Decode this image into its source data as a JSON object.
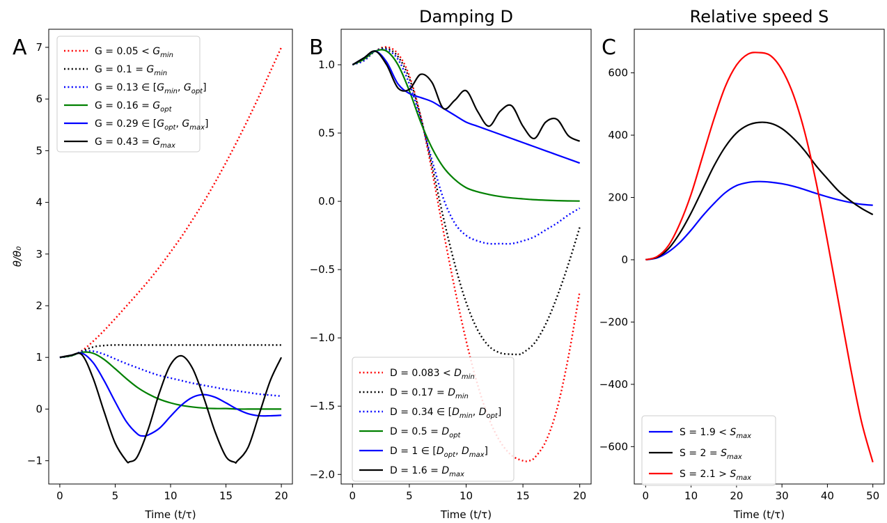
{
  "chart_data": [
    {
      "type": "line",
      "panel_letter": "A",
      "title": "",
      "xlabel": "Time (t/τ)",
      "ylabel": "θ/θ₀",
      "xlim": [
        -1,
        21
      ],
      "ylim": [
        -1.45,
        7.35
      ],
      "xticks": [
        0,
        5,
        10,
        15,
        20
      ],
      "xtick_labels": [
        "0",
        "5",
        "10",
        "15",
        "20"
      ],
      "yticks": [
        -1,
        0,
        1,
        2,
        3,
        4,
        5,
        6,
        7
      ],
      "ytick_labels": [
        "−1",
        "0",
        "1",
        "2",
        "3",
        "4",
        "5",
        "6",
        "7"
      ],
      "legend_position": "upper-left",
      "grid": false,
      "series": [
        {
          "name": "G = 0.05 < G_min",
          "color": "#ff0000",
          "dash": "dotted",
          "x": [
            0,
            1,
            2,
            3,
            4,
            5,
            6,
            7,
            8,
            9,
            10,
            11,
            12,
            13,
            14,
            15,
            16,
            17,
            18,
            19,
            20
          ],
          "y": [
            1.0,
            1.03,
            1.13,
            1.31,
            1.52,
            1.75,
            1.99,
            2.23,
            2.48,
            2.75,
            3.04,
            3.34,
            3.67,
            4.01,
            4.38,
            4.77,
            5.18,
            5.61,
            6.06,
            6.53,
            7.0
          ]
        },
        {
          "name": "G = 0.1 = G_min",
          "color": "#000000",
          "dash": "dotted",
          "x": [
            0,
            1,
            2,
            3,
            4,
            5,
            6,
            7,
            8,
            9,
            10,
            11,
            12,
            13,
            14,
            15,
            16,
            17,
            18,
            19,
            20
          ],
          "y": [
            1.0,
            1.03,
            1.12,
            1.2,
            1.23,
            1.24,
            1.24,
            1.24,
            1.24,
            1.24,
            1.24,
            1.24,
            1.24,
            1.24,
            1.24,
            1.24,
            1.24,
            1.24,
            1.24,
            1.24,
            1.24
          ]
        },
        {
          "name": "G = 0.13 ∈ [G_min, G_opt]",
          "color": "#0000ff",
          "dash": "dotted",
          "x": [
            0,
            1,
            2,
            3,
            4,
            5,
            6,
            7,
            8,
            9,
            10,
            11,
            12,
            13,
            14,
            15,
            16,
            17,
            18,
            19,
            20
          ],
          "y": [
            1.0,
            1.03,
            1.11,
            1.12,
            1.06,
            0.97,
            0.88,
            0.8,
            0.72,
            0.65,
            0.6,
            0.55,
            0.5,
            0.46,
            0.42,
            0.38,
            0.35,
            0.32,
            0.29,
            0.27,
            0.25
          ]
        },
        {
          "name": "G = 0.16 = G_opt",
          "color": "#008000",
          "dash": "solid",
          "x": [
            0,
            1,
            2,
            3,
            4,
            5,
            6,
            7,
            8,
            9,
            10,
            11,
            12,
            13,
            14,
            15,
            16,
            17,
            18,
            19,
            20
          ],
          "y": [
            1.0,
            1.03,
            1.1,
            1.08,
            0.96,
            0.78,
            0.59,
            0.42,
            0.29,
            0.19,
            0.12,
            0.07,
            0.04,
            0.02,
            0.01,
            0.01,
            0.0,
            0.0,
            0.0,
            0.0,
            0.0
          ]
        },
        {
          "name": "G = 0.29 ∈ [G_opt, G_max]",
          "color": "#0000ff",
          "dash": "solid",
          "x": [
            0,
            1,
            2,
            3,
            4,
            5,
            6,
            7,
            7.5,
            8,
            9,
            10,
            11,
            12,
            13,
            14,
            15,
            16,
            17,
            18,
            19,
            20
          ],
          "y": [
            1.0,
            1.04,
            1.08,
            0.9,
            0.55,
            0.14,
            -0.24,
            -0.48,
            -0.52,
            -0.5,
            -0.37,
            -0.14,
            0.08,
            0.23,
            0.28,
            0.23,
            0.12,
            0.0,
            -0.09,
            -0.13,
            -0.13,
            -0.12
          ]
        },
        {
          "name": "G = 0.43 = G_max",
          "color": "#000000",
          "dash": "solid",
          "x": [
            0,
            1,
            2,
            3,
            4,
            5,
            6,
            6.3,
            7,
            8,
            9,
            10,
            11,
            12,
            13,
            14,
            15,
            15.8,
            16,
            17,
            18,
            19,
            20
          ],
          "y": [
            1.0,
            1.04,
            1.05,
            0.6,
            -0.05,
            -0.66,
            -1.0,
            -1.02,
            -0.92,
            -0.38,
            0.32,
            0.86,
            1.03,
            0.78,
            0.22,
            -0.43,
            -0.92,
            -1.03,
            -1.01,
            -0.74,
            -0.1,
            0.55,
            1.0
          ]
        }
      ]
    },
    {
      "type": "line",
      "panel_letter": "B",
      "title": "Damping D",
      "xlabel": "Time (t/τ)",
      "ylabel": "",
      "xlim": [
        -1,
        21
      ],
      "ylim": [
        -2.07,
        1.26
      ],
      "xticks": [
        0,
        5,
        10,
        15,
        20
      ],
      "xtick_labels": [
        "0",
        "5",
        "10",
        "15",
        "20"
      ],
      "yticks": [
        -2.0,
        -1.5,
        -1.0,
        -0.5,
        0.0,
        0.5,
        1.0
      ],
      "ytick_labels": [
        "−2.0",
        "−1.5",
        "−1.0",
        "−0.5",
        "0.0",
        "0.5",
        "1.0"
      ],
      "legend_position": "lower-left",
      "grid": false,
      "series": [
        {
          "name": "D = 0.083 < D_min",
          "color": "#ff0000",
          "dash": "dotted",
          "x": [
            0,
            1,
            2,
            3,
            4,
            5,
            6,
            7,
            8,
            9,
            10,
            11,
            12,
            13,
            14,
            15,
            15.5,
            16,
            17,
            18,
            19,
            20
          ],
          "y": [
            1.0,
            1.03,
            1.1,
            1.13,
            1.08,
            0.92,
            0.62,
            0.22,
            -0.22,
            -0.64,
            -1.02,
            -1.34,
            -1.59,
            -1.76,
            -1.86,
            -1.9,
            -1.9,
            -1.88,
            -1.76,
            -1.52,
            -1.14,
            -0.66
          ]
        },
        {
          "name": "D = 0.17 = D_min",
          "color": "#000000",
          "dash": "dotted",
          "x": [
            0,
            1,
            2,
            3,
            4,
            5,
            6,
            7,
            8,
            9,
            10,
            11,
            12,
            13,
            14,
            14.8,
            15,
            16,
            17,
            18,
            19,
            20
          ],
          "y": [
            1.0,
            1.03,
            1.1,
            1.12,
            1.06,
            0.9,
            0.62,
            0.26,
            -0.12,
            -0.46,
            -0.74,
            -0.94,
            -1.06,
            -1.11,
            -1.12,
            -1.12,
            -1.11,
            -1.04,
            -0.9,
            -0.7,
            -0.46,
            -0.19
          ]
        },
        {
          "name": "D = 0.34 ∈ [D_min, D_opt]",
          "color": "#0000ff",
          "dash": "dotted",
          "x": [
            0,
            1,
            2,
            3,
            4,
            5,
            6,
            7,
            8,
            9,
            10,
            11,
            12,
            13,
            14,
            15,
            16,
            17,
            18,
            19,
            20
          ],
          "y": [
            1.0,
            1.03,
            1.1,
            1.11,
            1.04,
            0.86,
            0.6,
            0.3,
            0.02,
            -0.16,
            -0.25,
            -0.29,
            -0.31,
            -0.31,
            -0.31,
            -0.29,
            -0.26,
            -0.21,
            -0.16,
            -0.1,
            -0.05
          ]
        },
        {
          "name": "D = 0.5 = D_opt",
          "color": "#008000",
          "dash": "solid",
          "x": [
            0,
            1,
            2,
            3,
            4,
            5,
            6,
            7,
            8,
            9,
            10,
            11,
            12,
            13,
            14,
            15,
            16,
            17,
            18,
            19,
            20
          ],
          "y": [
            1.0,
            1.04,
            1.1,
            1.1,
            1.0,
            0.81,
            0.58,
            0.39,
            0.25,
            0.16,
            0.1,
            0.07,
            0.05,
            0.035,
            0.025,
            0.018,
            0.012,
            0.008,
            0.005,
            0.003,
            0.002
          ]
        },
        {
          "name": "D = 1 ∈ [D_opt, D_max]",
          "color": "#0000ff",
          "dash": "solid",
          "x": [
            0,
            1,
            2,
            3,
            4,
            5,
            6,
            7,
            8,
            9,
            10,
            11,
            12,
            13,
            14,
            15,
            16,
            17,
            18,
            19,
            20
          ],
          "y": [
            1.0,
            1.05,
            1.1,
            1.02,
            0.86,
            0.79,
            0.76,
            0.73,
            0.68,
            0.63,
            0.58,
            0.55,
            0.52,
            0.49,
            0.46,
            0.43,
            0.4,
            0.37,
            0.34,
            0.31,
            0.28
          ]
        },
        {
          "name": "D = 1.6 = D_max",
          "color": "#000000",
          "dash": "solid",
          "x": [
            0,
            1,
            2,
            3,
            4,
            5,
            6,
            7,
            8,
            9,
            10,
            11,
            12,
            13,
            14,
            15,
            16,
            17,
            18,
            19,
            20
          ],
          "y": [
            1.0,
            1.05,
            1.1,
            1.0,
            0.83,
            0.82,
            0.93,
            0.87,
            0.68,
            0.74,
            0.81,
            0.66,
            0.55,
            0.66,
            0.7,
            0.55,
            0.46,
            0.58,
            0.6,
            0.48,
            0.44
          ]
        }
      ]
    },
    {
      "type": "line",
      "panel_letter": "C",
      "title": "Relative speed S",
      "xlabel": "Time (t/τ)",
      "ylabel": "",
      "xlim": [
        -2.5,
        52.5
      ],
      "ylim": [
        -720,
        740
      ],
      "xticks": [
        0,
        10,
        20,
        30,
        40,
        50
      ],
      "xtick_labels": [
        "0",
        "10",
        "20",
        "30",
        "40",
        "50"
      ],
      "yticks": [
        -600,
        -400,
        -200,
        0,
        200,
        400,
        600
      ],
      "ytick_labels": [
        "−600",
        "−400",
        "−200",
        "0",
        "200",
        "400",
        "600"
      ],
      "legend_position": "lower-left",
      "grid": false,
      "series": [
        {
          "name": "S = 1.9 < S_max",
          "color": "#0000ff",
          "dash": "solid",
          "x": [
            0,
            2.5,
            5,
            7.5,
            10,
            12.5,
            15,
            17.5,
            20,
            22.5,
            25,
            27.5,
            30,
            32.5,
            35,
            37.5,
            40,
            42.5,
            45,
            47.5,
            50
          ],
          "y": [
            0,
            6,
            25,
            55,
            95,
            140,
            180,
            215,
            238,
            248,
            251,
            249,
            244,
            236,
            225,
            213,
            202,
            192,
            184,
            178,
            175
          ]
        },
        {
          "name": "S = 2 = S_max",
          "color": "#000000",
          "dash": "solid",
          "x": [
            0,
            2.5,
            5,
            7.5,
            10,
            12.5,
            15,
            17.5,
            20,
            22.5,
            25,
            27.5,
            30,
            32.5,
            35,
            37.5,
            40,
            42.5,
            45,
            47.5,
            50
          ],
          "y": [
            0,
            8,
            35,
            85,
            150,
            225,
            300,
            362,
            407,
            432,
            441,
            438,
            421,
            390,
            350,
            302,
            260,
            220,
            190,
            165,
            145
          ]
        },
        {
          "name": "S = 2.1 > S_max",
          "color": "#ff0000",
          "dash": "solid",
          "x": [
            0,
            2.5,
            5,
            7.5,
            10,
            12.5,
            15,
            17.5,
            20,
            22.5,
            25,
            27.5,
            30,
            32.5,
            35,
            37.5,
            40,
            42.5,
            45,
            47.5,
            50
          ],
          "y": [
            0,
            10,
            45,
            115,
            210,
            330,
            450,
            555,
            625,
            660,
            665,
            655,
            610,
            530,
            410,
            250,
            60,
            -140,
            -340,
            -520,
            -650
          ]
        }
      ]
    }
  ]
}
